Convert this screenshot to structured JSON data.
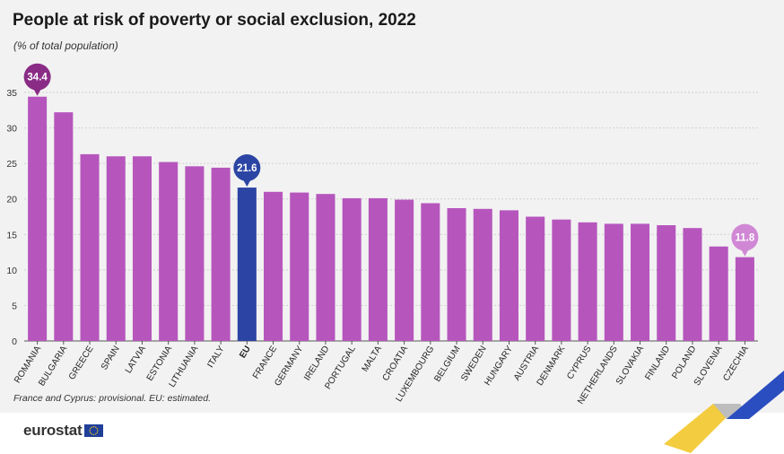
{
  "title": "People at risk of poverty or social exclusion, 2022",
  "subtitle": "(% of total population)",
  "note": "France and Cyprus: provisional. EU: estimated.",
  "logo": {
    "text": "eurostat"
  },
  "colors": {
    "bar": "#b656bd",
    "eu_bar": "#2c45a4",
    "highlight_max": "#8a2c86",
    "highlight_min": "#d088d5",
    "panel_background": "#f2f2f2",
    "ribbon_yellow": "#f3c62b",
    "ribbon_blue": "#2a4dc0",
    "ribbon_grey": "#bdbdbd"
  },
  "chart_data": {
    "type": "bar",
    "categories": [
      "ROMANIA",
      "BULGARIA",
      "GREECE",
      "SPAIN",
      "LATVIA",
      "ESTONIA",
      "LITHUANIA",
      "ITALY",
      "EU",
      "FRANCE",
      "GERMANY",
      "IRELAND",
      "PORTUGAL",
      "MALTA",
      "CROATIA",
      "LUXEMBOURG",
      "BELGIUM",
      "SWEDEN",
      "HUNGARY",
      "AUSTRIA",
      "DENMARK",
      "CYPRUS",
      "NETHERLANDS",
      "SLOVAKIA",
      "FINLAND",
      "POLAND",
      "SLOVENIA",
      "CZECHIA"
    ],
    "values": [
      34.4,
      32.2,
      26.3,
      26.0,
      26.0,
      25.2,
      24.6,
      24.4,
      21.6,
      21.0,
      20.9,
      20.7,
      20.1,
      20.1,
      19.9,
      19.4,
      18.7,
      18.6,
      18.4,
      17.5,
      17.1,
      16.7,
      16.5,
      16.5,
      16.3,
      15.9,
      13.3,
      11.8
    ],
    "ylim": [
      0,
      35
    ],
    "yticks": [
      "0",
      "5",
      "10",
      "15",
      "20",
      "25",
      "30",
      "35"
    ],
    "grid": true,
    "bold_categories": [
      "EU"
    ],
    "annotations": [
      {
        "category": "ROMANIA",
        "label": "34.4",
        "style": "max"
      },
      {
        "category": "EU",
        "label": "21.6",
        "style": "eu"
      },
      {
        "category": "CZECHIA",
        "label": "11.8",
        "style": "min"
      }
    ]
  }
}
